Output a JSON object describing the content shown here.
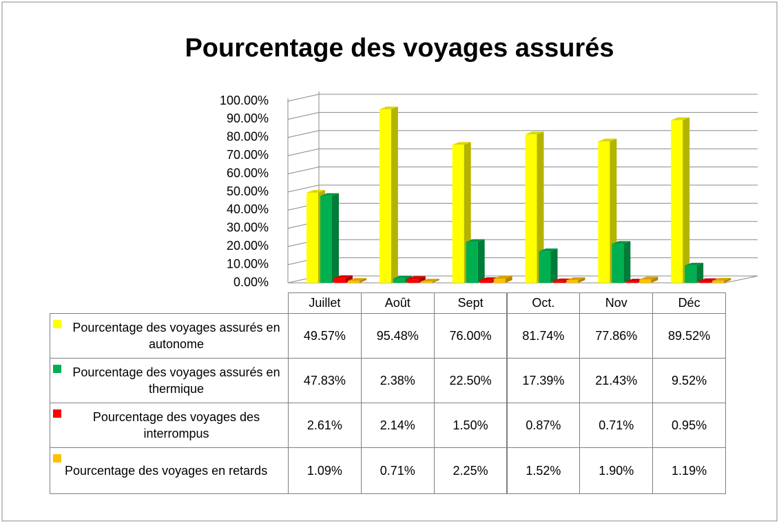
{
  "chart_data": {
    "type": "bar3d",
    "title": "Pourcentage des voyages assurés",
    "categories": [
      "Juillet",
      "Août",
      "Sept",
      "Oct.",
      "Nov",
      "Déc"
    ],
    "series": [
      {
        "name": "Pourcentage des voyages assurés en autonome",
        "color": "#ffff00",
        "values": [
          49.57,
          95.48,
          76.0,
          81.74,
          77.86,
          89.52
        ],
        "value_labels": [
          "49.57%",
          "95.48%",
          "76.00%",
          "81.74%",
          "77.86%",
          "89.52%"
        ]
      },
      {
        "name": "Pourcentage des voyages assurés en thermique",
        "color": "#00b050",
        "values": [
          47.83,
          2.38,
          22.5,
          17.39,
          21.43,
          9.52
        ],
        "value_labels": [
          "47.83%",
          "2.38%",
          "22.50%",
          "17.39%",
          "21.43%",
          "9.52%"
        ]
      },
      {
        "name": "Pourcentage des voyages des interrompus",
        "color": "#ff0000",
        "values": [
          2.61,
          2.14,
          1.5,
          0.87,
          0.71,
          0.95
        ],
        "value_labels": [
          "2.61%",
          "2.14%",
          "1.50%",
          "0.87%",
          "0.71%",
          "0.95%"
        ]
      },
      {
        "name": "Pourcentage des voyages en retards",
        "color": "#ffc000",
        "values": [
          1.09,
          0.71,
          2.25,
          1.52,
          1.9,
          1.19
        ],
        "value_labels": [
          "1.09%",
          "0.71%",
          "2.25%",
          "1.52%",
          "1.90%",
          "1.19%"
        ]
      }
    ],
    "ylim": [
      0,
      100
    ],
    "yticks": [
      {
        "value": 0,
        "label": "0.00%"
      },
      {
        "value": 10,
        "label": "10.00%"
      },
      {
        "value": 20,
        "label": "20.00%"
      },
      {
        "value": 30,
        "label": "30.00%"
      },
      {
        "value": 40,
        "label": "40.00%"
      },
      {
        "value": 50,
        "label": "50.00%"
      },
      {
        "value": 60,
        "label": "60.00%"
      },
      {
        "value": 70,
        "label": "70.00%"
      },
      {
        "value": 80,
        "label": "80.00%"
      },
      {
        "value": 90,
        "label": "90.00%"
      },
      {
        "value": 100,
        "label": "100.00%"
      }
    ],
    "grid": true
  }
}
